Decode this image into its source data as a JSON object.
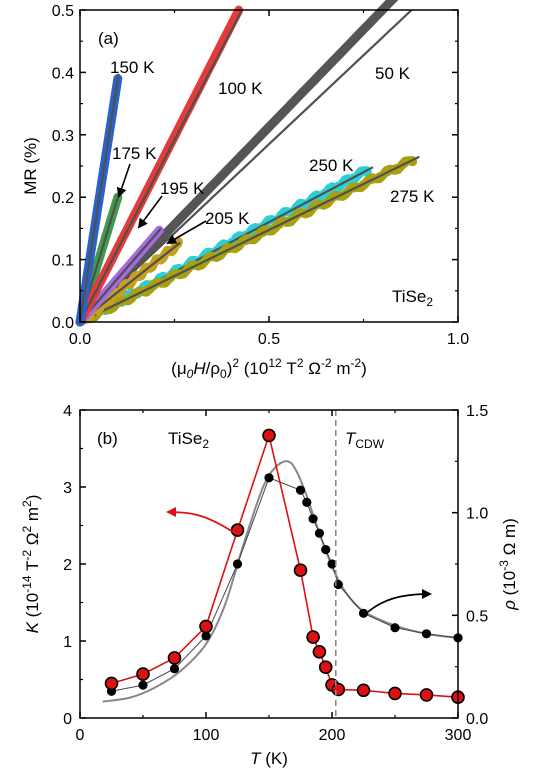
{
  "panel_a": {
    "tag": "(a)",
    "material": {
      "base": "TiSe",
      "sub": "2"
    },
    "series_labels": [
      "150 K",
      "100 K",
      "50 K",
      "175 K",
      "195 K",
      "205 K",
      "250 K",
      "275 K"
    ],
    "xticks": [
      "0.0",
      "0.5",
      "1.0"
    ],
    "yticks": [
      "0.0",
      "0.1",
      "0.2",
      "0.3",
      "0.4",
      "0.5"
    ]
  },
  "panel_b": {
    "tag": "(b)",
    "material": {
      "base": "TiSe",
      "sub": "2"
    },
    "tcdw": {
      "base": "T",
      "sub": "CDW"
    },
    "xticks": [
      "0",
      "100",
      "200",
      "300"
    ],
    "yticks_left": [
      "0",
      "1",
      "2",
      "3",
      "4"
    ],
    "yticks_right": [
      "0.0",
      "0.5",
      "1.0",
      "1.5"
    ]
  },
  "colors": {
    "150K": "#2a62c9",
    "175K": "#3f9a4c",
    "100K": "#e53a3a",
    "50K": "#555555",
    "195K": "#a56be0",
    "205K": "#c8a020",
    "250K": "#2ccfd6",
    "275K": "#a8a010",
    "fit": "#505050",
    "K": "#dd1111",
    "rho": "#000000",
    "rho_line": "#888888"
  },
  "chart_data": [
    {
      "type": "scatter",
      "panel": "a",
      "xlabel": "(μ0H/ρ0)2 (10^12 T^2 Ω^-2 m^-2)",
      "ylabel": "MR (%)",
      "xlim": [
        0,
        1.0
      ],
      "ylim": [
        0,
        0.5
      ],
      "series": [
        {
          "name": "150 K",
          "slope": 3.9,
          "xmax": 0.1
        },
        {
          "name": "175 K",
          "slope": 2.0,
          "xmax": 0.1
        },
        {
          "name": "100 K",
          "slope": 1.19,
          "xmax": 0.42
        },
        {
          "name": "50 K",
          "slope": 0.625,
          "xmax": 0.86
        },
        {
          "name": "195 K",
          "slope": 0.7,
          "xmax": 0.21
        },
        {
          "name": "205 K",
          "slope": 0.48,
          "xmax": 0.26
        },
        {
          "name": "250 K",
          "slope": 0.32,
          "xmax": 0.76
        },
        {
          "name": "275 K",
          "slope": 0.295,
          "xmax": 0.88
        }
      ]
    },
    {
      "type": "line",
      "panel": "b",
      "xlabel": "T (K)",
      "ylabel_left": "K (10^-14 T^-2 Ω^2 m^2)",
      "ylabel_right": "ρ (10^-3 Ω m)",
      "xlim": [
        0,
        300
      ],
      "ylim_left": [
        0,
        4
      ],
      "ylim_right": [
        0,
        1.5
      ],
      "tcdw_T": 203,
      "K": {
        "x": [
          25,
          50,
          75,
          100,
          125,
          150,
          175,
          185,
          190,
          195,
          200,
          205,
          225,
          250,
          275,
          300
        ],
        "y": [
          0.45,
          0.57,
          0.78,
          1.19,
          2.44,
          3.67,
          1.92,
          1.05,
          0.86,
          0.66,
          0.43,
          0.37,
          0.36,
          0.32,
          0.3,
          0.27
        ]
      },
      "rho": {
        "x": [
          25,
          50,
          75,
          100,
          125,
          150,
          175,
          180,
          185,
          190,
          195,
          200,
          205,
          225,
          250,
          275,
          300
        ],
        "y": [
          0.13,
          0.16,
          0.24,
          0.4,
          0.75,
          1.17,
          1.11,
          1.05,
          0.97,
          0.9,
          0.82,
          0.75,
          0.65,
          0.51,
          0.44,
          0.41,
          0.39
        ]
      },
      "rho_curve": {
        "x": [
          18,
          40,
          60,
          80,
          100,
          115,
          130,
          145,
          155,
          165,
          172,
          180,
          190,
          200,
          210,
          225,
          250,
          275,
          300
        ],
        "y": [
          0.08,
          0.1,
          0.15,
          0.23,
          0.36,
          0.55,
          0.85,
          1.12,
          1.22,
          1.25,
          1.2,
          1.08,
          0.9,
          0.74,
          0.62,
          0.52,
          0.45,
          0.41,
          0.39
        ]
      }
    }
  ]
}
